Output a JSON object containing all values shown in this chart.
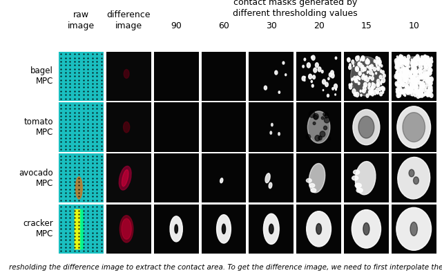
{
  "title_top": "contact masks generated by\ndifferent thresholding values",
  "col_headers_line1": [
    "raw",
    "difference",
    "",
    "",
    "",
    "",
    "",
    ""
  ],
  "col_headers_line2": [
    "image",
    "image",
    "90",
    "60",
    "30",
    "20",
    "15",
    "10"
  ],
  "row_labels": [
    "bagel\nMPC",
    "tomato\nMPC",
    "avocado\nMPC",
    "cracker\nMPC"
  ],
  "caption": "resholding the difference image to extract the contact area. To get the difference image, we need to first interpolate the raw imag",
  "n_rows": 4,
  "n_cols": 8,
  "bg_color": "#ffffff",
  "header_fontsize": 9,
  "label_fontsize": 8.5,
  "caption_fontsize": 7.5
}
